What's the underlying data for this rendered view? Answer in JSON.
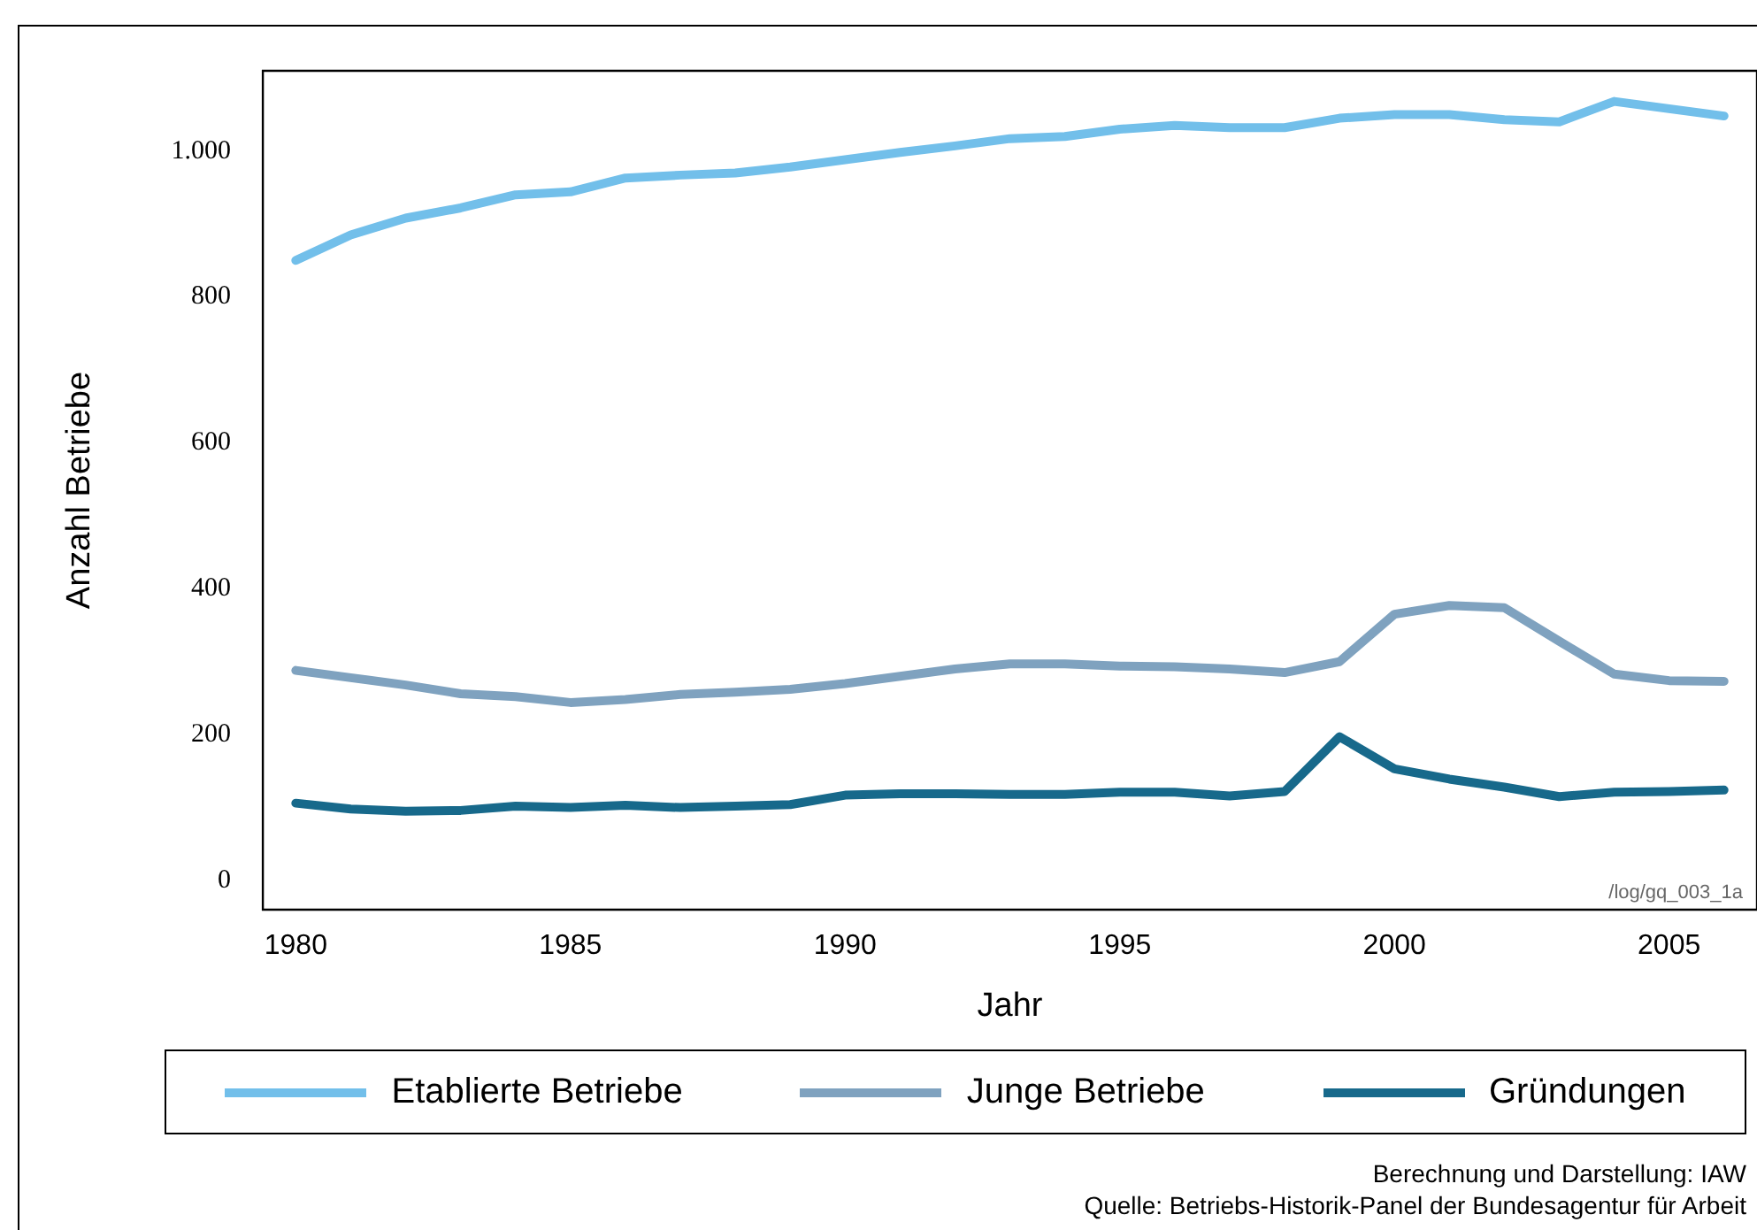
{
  "chart_data": {
    "type": "line",
    "xlabel": "Jahr",
    "ylabel": "Anzahl Betriebe",
    "x": [
      1980,
      1981,
      1982,
      1983,
      1984,
      1985,
      1986,
      1987,
      1988,
      1989,
      1990,
      1991,
      1992,
      1993,
      1994,
      1995,
      1996,
      1997,
      1998,
      1999,
      2000,
      2001,
      2002,
      2003,
      2004,
      2005,
      2006
    ],
    "series": [
      {
        "name": "Etablierte Betriebe",
        "color": "#72bfea",
        "values": [
          850,
          885,
          908,
          922,
          940,
          944,
          963,
          967,
          970,
          978,
          988,
          998,
          1007,
          1017,
          1020,
          1030,
          1035,
          1032,
          1032,
          1045,
          1050,
          1050,
          1043,
          1040,
          1068,
          1058,
          1048
        ]
      },
      {
        "name": "Junge Betriebe",
        "color": "#7fa2bf",
        "values": [
          288,
          278,
          268,
          256,
          252,
          244,
          248,
          255,
          258,
          262,
          270,
          280,
          290,
          297,
          297,
          294,
          293,
          290,
          285,
          300,
          365,
          377,
          374,
          328,
          283,
          274,
          273
        ]
      },
      {
        "name": "Gründungen",
        "color": "#17698b",
        "values": [
          106,
          98,
          95,
          96,
          102,
          100,
          103,
          100,
          102,
          104,
          117,
          119,
          119,
          118,
          118,
          121,
          121,
          116,
          122,
          197,
          153,
          139,
          128,
          115,
          121,
          122,
          124
        ]
      }
    ],
    "xlim": [
      1979.4,
      2006.6
    ],
    "xticks": [
      1980,
      1985,
      1990,
      1995,
      2000,
      2005
    ],
    "ylim": [
      -40,
      1110
    ],
    "yticks": [
      0,
      200,
      400,
      600,
      800,
      {
        "value": 1000,
        "label": "1.000"
      }
    ],
    "grid": false,
    "legend": "bottom",
    "marker": "none",
    "line_style": "solid",
    "annotations": [
      "/log/gq_003_1a",
      "Berechnung und Darstellung: IAW",
      "Quelle: Betriebs-Historik-Panel der Bundesagentur für Arbeit"
    ]
  }
}
